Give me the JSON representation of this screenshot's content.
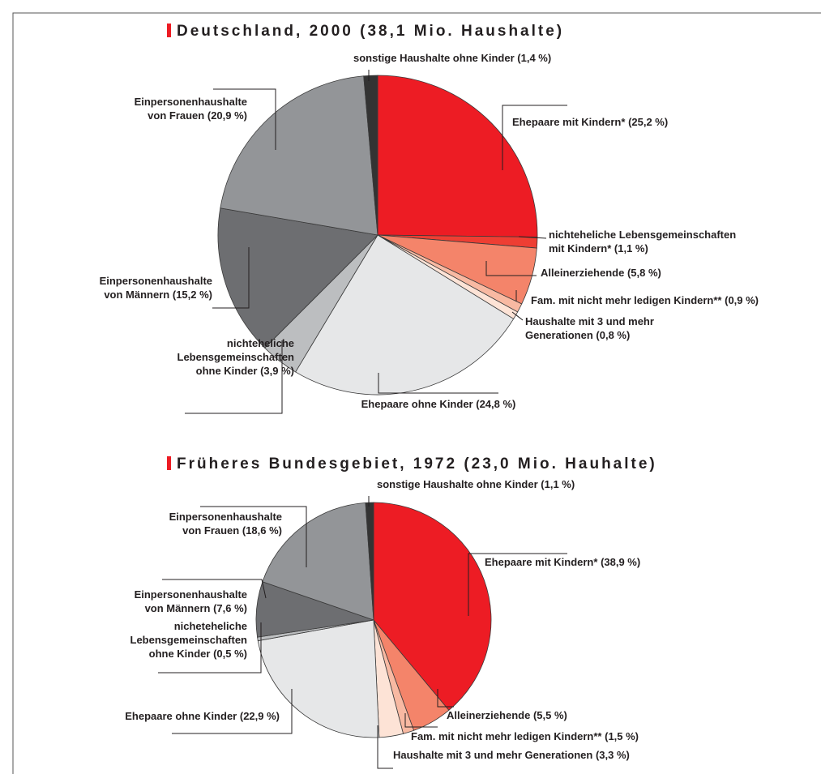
{
  "chart_data": [
    {
      "type": "pie",
      "title": "Deutschland, 2000 (38,1 Mio. Haushalte)",
      "categories": [
        [
          "Ehepaare mit Kindern*"
        ],
        [
          "nichteheliche Lebensgemeinschaften",
          "mit Kindern*"
        ],
        [
          "Alleinerziehende"
        ],
        [
          "Fam. mit nicht mehr ledigen Kindern**"
        ],
        [
          "Haushalte mit 3 und mehr",
          "Generationen"
        ],
        [
          "Ehepaare ohne Kinder"
        ],
        [
          "nichteheliche",
          "Lebensgemeinschaften",
          "ohne Kinder"
        ],
        [
          "Einpersonenhaushalte",
          "von Männern"
        ],
        [
          "Einpersonenhaushalte",
          "von Frauen"
        ],
        [
          "sonstige Haushalte ohne Kinder"
        ]
      ],
      "values": [
        25.2,
        1.1,
        5.8,
        0.9,
        0.8,
        24.8,
        3.9,
        15.2,
        20.9,
        1.4
      ],
      "value_labels": [
        "(25,2 %)",
        "(1,1 %)",
        "(5,8 %)",
        "(0,9 %)",
        "(0,8 %)",
        "(24,8 %)",
        "(3,9 %)",
        "(15,2 %)",
        "(20,9 %)",
        "(1,4 %)"
      ],
      "colors": [
        "#ed1c24",
        "#ee3e33",
        "#f4846a",
        "#f8b9a2",
        "#fde3d6",
        "#e6e7e8",
        "#bcbec0",
        "#6d6e71",
        "#939598",
        "#333333"
      ]
    },
    {
      "type": "pie",
      "title": "Früheres Bundesgebiet, 1972 (23,0 Mio. Hauhalte)",
      "categories": [
        [
          "Ehepaare mit Kindern*"
        ],
        [
          "Alleinerziehende"
        ],
        [
          "Fam. mit nicht mehr ledigen Kindern**"
        ],
        [
          "Haushalte mit 3 und mehr Generationen"
        ],
        [
          "Ehepaare ohne Kinder"
        ],
        [
          "nicheteheliche",
          "Lebensgemeinschaften",
          "ohne Kinder"
        ],
        [
          "Einpersonenhaushalte",
          "von Männern"
        ],
        [
          "Einpersonenhaushalte",
          "von Frauen"
        ],
        [
          "sonstige Haushalte ohne Kinder"
        ]
      ],
      "values": [
        38.9,
        5.5,
        1.5,
        3.3,
        22.9,
        0.5,
        7.6,
        18.6,
        1.1
      ],
      "value_labels": [
        "(38,9 %)",
        "(5,5 %)",
        "(1,5 %)",
        "(3,3 %)",
        "(22,9 %)",
        "(0,5 %)",
        "(7,6 %)",
        "(18,6 %)",
        "(1,1 %)"
      ],
      "colors": [
        "#ed1c24",
        "#f4846a",
        "#f8b9a2",
        "#fde3d6",
        "#e6e7e8",
        "#bcbec0",
        "#6d6e71",
        "#939598",
        "#333333"
      ]
    }
  ]
}
